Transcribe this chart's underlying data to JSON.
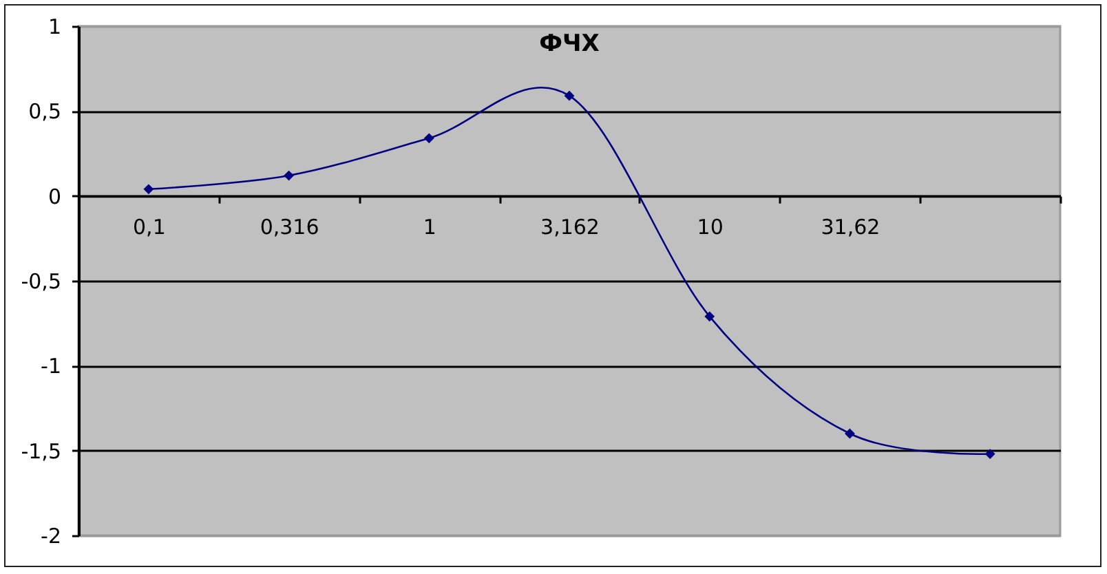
{
  "chart_data": {
    "type": "line",
    "title": "ФЧХ",
    "categories": [
      "0,1",
      "0,316",
      "1",
      "3,162",
      "10",
      "31,62",
      null
    ],
    "series": [
      {
        "color": "#000080",
        "values": [
          0.04,
          0.12,
          0.34,
          0.59,
          -0.71,
          -1.4,
          -1.52
        ]
      }
    ],
    "ylim": [
      -2,
      1
    ],
    "yticks": [
      -2,
      {
        "value": -1.5,
        "label": "-1,5"
      },
      -1,
      {
        "value": -0.5,
        "label": "-0,5"
      },
      0,
      {
        "value": 0.5,
        "label": "0,5"
      },
      1
    ],
    "grid": "y",
    "marker": "diamond",
    "line_style": "solid"
  }
}
